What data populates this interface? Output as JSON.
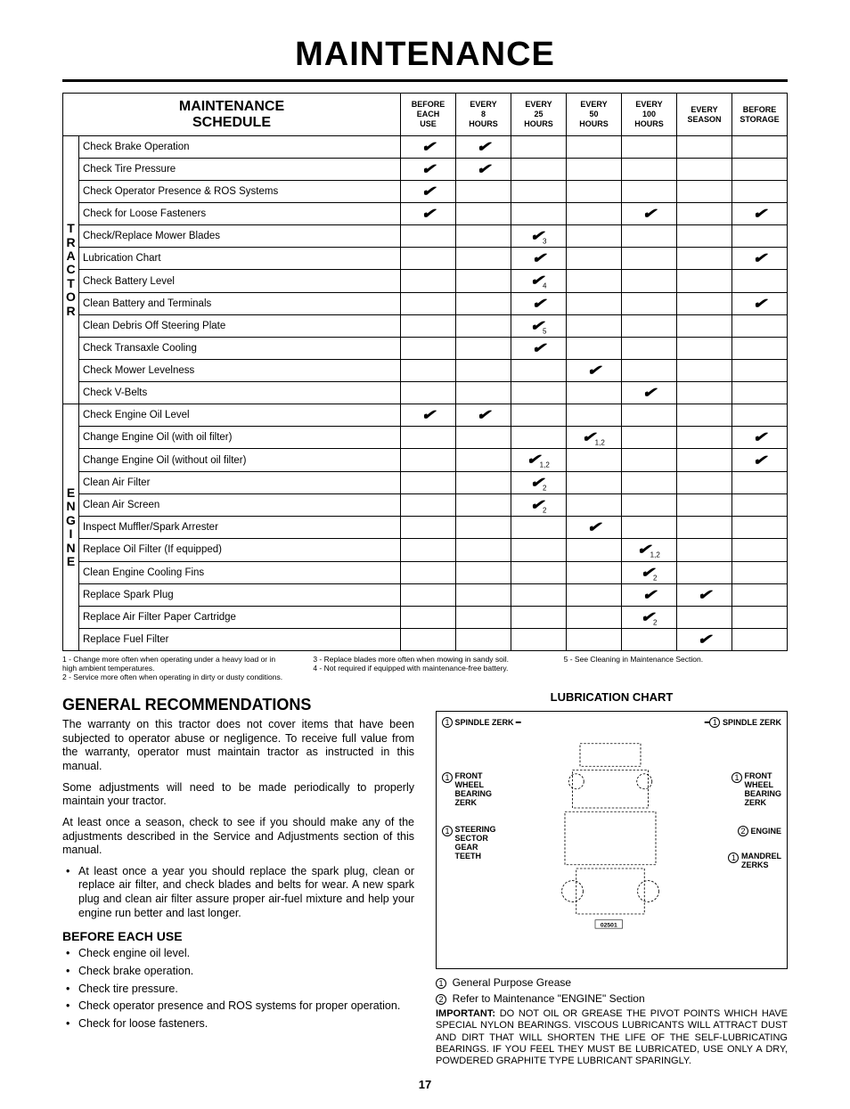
{
  "page_title": "MAINTENANCE",
  "schedule_header": "MAINTENANCE\nSCHEDULE",
  "columns": [
    "BEFORE\nEACH\nUSE",
    "EVERY\n8\nHOURS",
    "EVERY\n25\nHOURS",
    "EVERY\n50\nHOURS",
    "EVERY\n100\nHOURS",
    "EVERY\nSEASON",
    "BEFORE\nSTORAGE"
  ],
  "groups": [
    {
      "vlabel": "T\nR\nA\nC\nT\nO\nR",
      "rows": [
        {
          "task": "Check Brake Operation",
          "marks": [
            "c",
            "c",
            "",
            "",
            "",
            "",
            ""
          ]
        },
        {
          "task": "Check Tire Pressure",
          "marks": [
            "c",
            "c",
            "",
            "",
            "",
            "",
            ""
          ]
        },
        {
          "task": "Check Operator Presence & ROS Systems",
          "marks": [
            "c",
            "",
            "",
            "",
            "",
            "",
            ""
          ]
        },
        {
          "task": "Check for Loose Fasteners",
          "marks": [
            "c",
            "",
            "",
            "",
            "c",
            "",
            "c"
          ]
        },
        {
          "task": "Check/Replace Mower Blades",
          "marks": [
            "",
            "",
            "c3",
            "",
            "",
            "",
            ""
          ]
        },
        {
          "task": "Lubrication Chart",
          "marks": [
            "",
            "",
            "c",
            "",
            "",
            "",
            "c"
          ]
        },
        {
          "task": "Check Battery Level",
          "marks": [
            "",
            "",
            "c4",
            "",
            "",
            "",
            ""
          ]
        },
        {
          "task": "Clean Battery and Terminals",
          "marks": [
            "",
            "",
            "c",
            "",
            "",
            "",
            "c"
          ]
        },
        {
          "task": "Clean Debris Off Steering Plate",
          "marks": [
            "",
            "",
            "c5",
            "",
            "",
            "",
            ""
          ]
        },
        {
          "task": "Check Transaxle Cooling",
          "marks": [
            "",
            "",
            "c",
            "",
            "",
            "",
            ""
          ]
        },
        {
          "task": "Check Mower Levelness",
          "marks": [
            "",
            "",
            "",
            "c",
            "",
            "",
            ""
          ]
        },
        {
          "task": "Check V-Belts",
          "marks": [
            "",
            "",
            "",
            "",
            "c",
            "",
            ""
          ]
        }
      ]
    },
    {
      "vlabel": "E\nN\nG\nI\nN\nE",
      "rows": [
        {
          "task": "Check Engine Oil Level",
          "marks": [
            "c",
            "c",
            "",
            "",
            "",
            "",
            ""
          ]
        },
        {
          "task": "Change Engine Oil (with oil filter)",
          "marks": [
            "",
            "",
            "",
            "c12",
            "",
            "",
            "c"
          ]
        },
        {
          "task": "Change Engine Oil (without oil filter)",
          "marks": [
            "",
            "",
            "c12",
            "",
            "",
            "",
            "c"
          ]
        },
        {
          "task": "Clean Air Filter",
          "marks": [
            "",
            "",
            "c2",
            "",
            "",
            "",
            ""
          ]
        },
        {
          "task": "Clean Air Screen",
          "marks": [
            "",
            "",
            "c2",
            "",
            "",
            "",
            ""
          ]
        },
        {
          "task": "Inspect Muffler/Spark Arrester",
          "marks": [
            "",
            "",
            "",
            "c",
            "",
            "",
            ""
          ]
        },
        {
          "task": "Replace Oil Filter (If equipped)",
          "marks": [
            "",
            "",
            "",
            "",
            "c12",
            "",
            ""
          ]
        },
        {
          "task": "Clean Engine Cooling Fins",
          "marks": [
            "",
            "",
            "",
            "",
            "c2",
            "",
            ""
          ]
        },
        {
          "task": "Replace Spark Plug",
          "marks": [
            "",
            "",
            "",
            "",
            "c",
            "c",
            ""
          ]
        },
        {
          "task": "Replace Air Filter Paper Cartridge",
          "marks": [
            "",
            "",
            "",
            "",
            "c2",
            "",
            ""
          ]
        },
        {
          "task": "Replace Fuel Filter",
          "marks": [
            "",
            "",
            "",
            "",
            "",
            "c",
            ""
          ]
        }
      ]
    }
  ],
  "footnotes": {
    "c1": [
      "1 - Change more often when operating under a heavy load or in high ambient temperatures.",
      "2 - Service more often when operating in dirty or dusty conditions."
    ],
    "c2": [
      "3 - Replace blades more often when mowing in sandy soil.",
      "4 - Not required if equipped with maintenance-free battery."
    ],
    "c3": [
      "5 - See Cleaning in Maintenance Section."
    ]
  },
  "gen_rec_title": "GENERAL RECOMMENDATIONS",
  "gen_rec_paras": [
    "The warranty on this tractor does not cover items that have been subjected to operator abuse or negligence.  To receive full value from the warranty, operator must maintain tractor as instructed in this manual.",
    "Some adjustments will need to be made periodically to properly maintain your tractor.",
    "At least once a season, check to see if you should make any of the adjustments described in the Service and Adjustments section of this manual."
  ],
  "gen_rec_bullets": [
    "At least once a year you should replace the spark plug, clean or replace air filter, and check blades and belts for wear.  A new spark plug and clean air filter assure proper air-fuel mixture and help your engine run better and last longer."
  ],
  "before_use_title": "BEFORE EACH USE",
  "before_use_items": [
    "Check engine oil level.",
    "Check brake operation.",
    "Check tire pressure.",
    "Check operator presence and ROS systems for proper operation.",
    "Check for loose fasteners."
  ],
  "lube_title": "LUBRICATION CHART",
  "diagram_labels": {
    "spindle_l": "SPINDLE ZERK",
    "spindle_r": "SPINDLE ZERK",
    "front_l": "FRONT\nWHEEL\nBEARING\nZERK",
    "front_r": "FRONT\nWHEEL\nBEARING\nZERK",
    "steering": "STEERING\nSECTOR\nGEAR\nTEETH",
    "engine": "ENGINE",
    "mandrel": "MANDREL\nZERKS",
    "partno": "02501"
  },
  "legend": [
    {
      "n": "1",
      "text": "General Purpose Grease"
    },
    {
      "n": "2",
      "text": "Refer to Maintenance \"ENGINE\" Section"
    }
  ],
  "important_label": "IMPORTANT:",
  "important_text": "DO NOT OIL OR GREASE THE PIVOT POINTS WHICH HAVE SPECIAL NYLON BEARINGS.  VISCOUS LUBRICANTS WILL ATTRACT DUST AND DIRT THAT WILL SHORTEN THE LIFE OF THE SELF-LUBRICATING BEARINGS.  IF YOU FEEL THEY MUST BE LUBRICATED, USE ONLY A DRY, POWDERED GRAPHITE TYPE LUBRICANT SPARINGLY.",
  "page_number": "17",
  "colors": {
    "text": "#000000",
    "bg": "#ffffff",
    "border": "#000000"
  }
}
